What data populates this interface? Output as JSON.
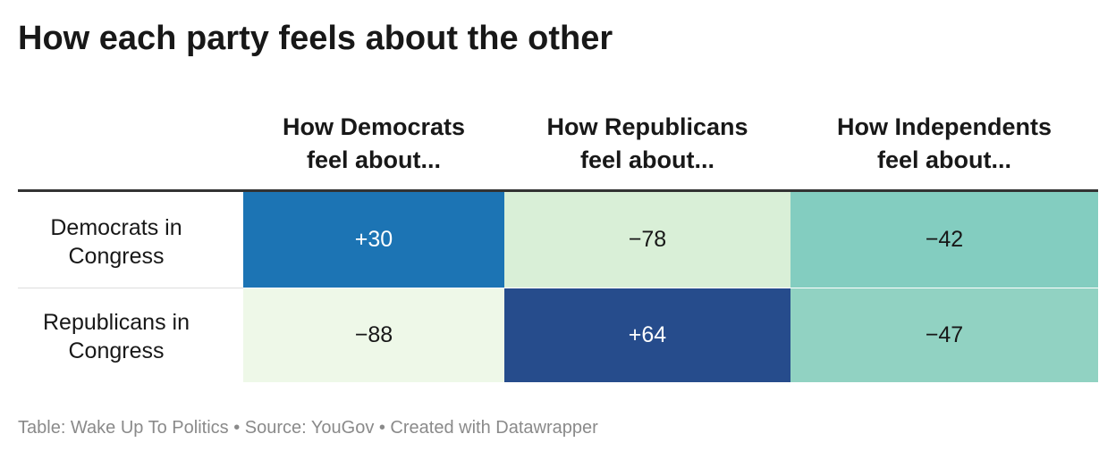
{
  "title": "How each party feels about the other",
  "chart_data": {
    "type": "table",
    "title": "How each party feels about the other",
    "columns": [
      {
        "line1": "How Democrats",
        "line2": "feel about..."
      },
      {
        "line1": "How Republicans",
        "line2": "feel about..."
      },
      {
        "line1": "How Independents",
        "line2": "feel about..."
      }
    ],
    "rows": [
      {
        "line1": "Democrats in",
        "line2": "Congress",
        "values": [
          "+30",
          "−78",
          "−42"
        ],
        "colors": [
          "#1c74b4",
          "#d9efd7",
          "#83cdc0"
        ],
        "text_colors": [
          "#ffffff",
          "#181818",
          "#181818"
        ]
      },
      {
        "line1": "Republicans in",
        "line2": "Congress",
        "values": [
          "−88",
          "+64",
          "−47"
        ],
        "colors": [
          "#eef8e8",
          "#264c8c",
          "#91d2c2"
        ],
        "text_colors": [
          "#181818",
          "#ffffff",
          "#181818"
        ]
      }
    ]
  },
  "footer": "Table: Wake Up To Politics • Source: YouGov • Created with Datawrapper"
}
